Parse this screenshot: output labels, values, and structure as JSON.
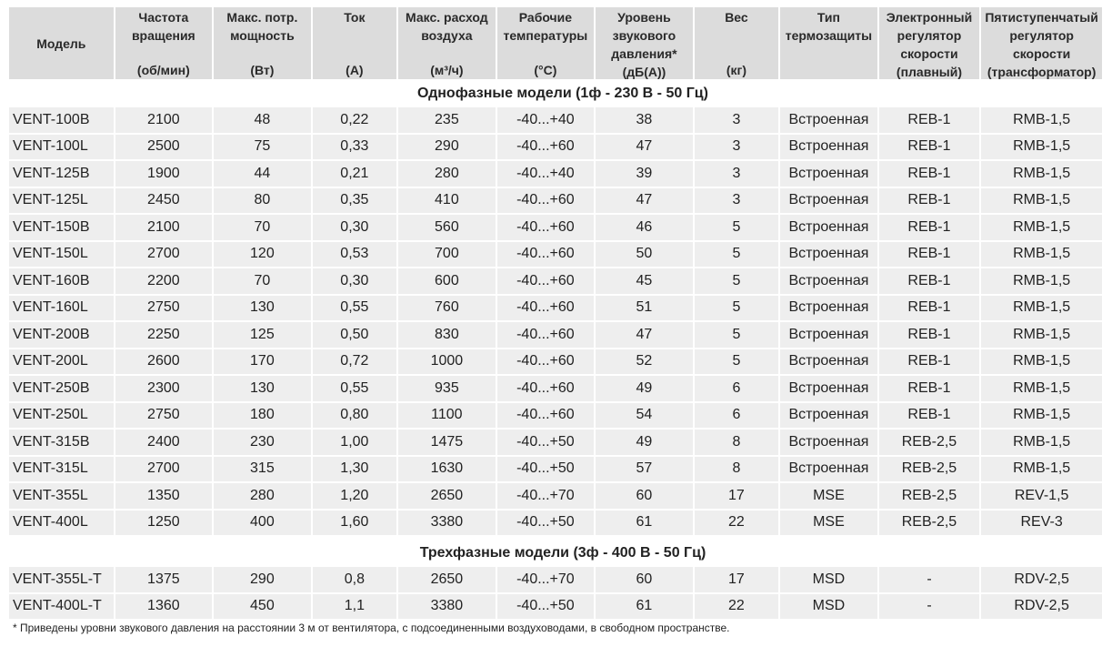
{
  "table": {
    "columns": [
      {
        "key": "model",
        "title": "Модель",
        "unit": ""
      },
      {
        "key": "rpm",
        "title": "Частота\nвращения",
        "unit": "(об/мин)"
      },
      {
        "key": "power",
        "title": "Макс. потр.\nмощность",
        "unit": "(Вт)"
      },
      {
        "key": "current",
        "title": "Ток",
        "unit": "(А)"
      },
      {
        "key": "airflow",
        "title": "Макс. расход\nвоздуха",
        "unit": "(м³/ч)"
      },
      {
        "key": "temp",
        "title": "Рабочие\nтемпературы",
        "unit": "(°С)"
      },
      {
        "key": "noise",
        "title": "Уровень\nзвукового\nдавления*",
        "unit": "(дБ(А))"
      },
      {
        "key": "weight",
        "title": "Вес",
        "unit": "(кг)"
      },
      {
        "key": "protection",
        "title": "Тип\nтермозащиты",
        "unit": ""
      },
      {
        "key": "reb",
        "title": "Электронный\nрегулятор\nскорости\n(плавный)",
        "unit": ""
      },
      {
        "key": "rmb",
        "title": "Пятиступенчатый\nрегулятор\nскорости\n(трансформатор)",
        "unit": ""
      }
    ],
    "groups": [
      {
        "title": "Однофазные модели (1ф - 230 В - 50 Гц)",
        "rows": [
          [
            "VENT-100B",
            "2100",
            "48",
            "0,22",
            "235",
            "-40...+40",
            "38",
            "3",
            "Встроенная",
            "REB-1",
            "RMB-1,5"
          ],
          [
            "VENT-100L",
            "2500",
            "75",
            "0,33",
            "290",
            "-40...+60",
            "47",
            "3",
            "Встроенная",
            "REB-1",
            "RMB-1,5"
          ],
          [
            "VENT-125B",
            "1900",
            "44",
            "0,21",
            "280",
            "-40...+40",
            "39",
            "3",
            "Встроенная",
            "REB-1",
            "RMB-1,5"
          ],
          [
            "VENT-125L",
            "2450",
            "80",
            "0,35",
            "410",
            "-40...+60",
            "47",
            "3",
            "Встроенная",
            "REB-1",
            "RMB-1,5"
          ],
          [
            "VENT-150B",
            "2100",
            "70",
            "0,30",
            "560",
            "-40...+60",
            "46",
            "5",
            "Встроенная",
            "REB-1",
            "RMB-1,5"
          ],
          [
            "VENT-150L",
            "2700",
            "120",
            "0,53",
            "700",
            "-40...+60",
            "50",
            "5",
            "Встроенная",
            "REB-1",
            "RMB-1,5"
          ],
          [
            "VENT-160B",
            "2200",
            "70",
            "0,30",
            "600",
            "-40...+60",
            "45",
            "5",
            "Встроенная",
            "REB-1",
            "RMB-1,5"
          ],
          [
            "VENT-160L",
            "2750",
            "130",
            "0,55",
            "760",
            "-40...+60",
            "51",
            "5",
            "Встроенная",
            "REB-1",
            "RMB-1,5"
          ],
          [
            "VENT-200B",
            "2250",
            "125",
            "0,50",
            "830",
            "-40...+60",
            "47",
            "5",
            "Встроенная",
            "REB-1",
            "RMB-1,5"
          ],
          [
            "VENT-200L",
            "2600",
            "170",
            "0,72",
            "1000",
            "-40...+60",
            "52",
            "5",
            "Встроенная",
            "REB-1",
            "RMB-1,5"
          ],
          [
            "VENT-250B",
            "2300",
            "130",
            "0,55",
            "935",
            "-40...+60",
            "49",
            "6",
            "Встроенная",
            "REB-1",
            "RMB-1,5"
          ],
          [
            "VENT-250L",
            "2750",
            "180",
            "0,80",
            "1100",
            "-40...+60",
            "54",
            "6",
            "Встроенная",
            "REB-1",
            "RMB-1,5"
          ],
          [
            "VENT-315B",
            "2400",
            "230",
            "1,00",
            "1475",
            "-40...+50",
            "49",
            "8",
            "Встроенная",
            "REB-2,5",
            "RMB-1,5"
          ],
          [
            "VENT-315L",
            "2700",
            "315",
            "1,30",
            "1630",
            "-40...+50",
            "57",
            "8",
            "Встроенная",
            "REB-2,5",
            "RMB-1,5"
          ],
          [
            "VENT-355L",
            "1350",
            "280",
            "1,20",
            "2650",
            "-40...+70",
            "60",
            "17",
            "MSE",
            "REB-2,5",
            "REV-1,5"
          ],
          [
            "VENT-400L",
            "1250",
            "400",
            "1,60",
            "3380",
            "-40...+50",
            "61",
            "22",
            "MSE",
            "REB-2,5",
            "REV-3"
          ]
        ]
      },
      {
        "title": "Трехфазные модели (3ф - 400 В - 50 Гц)",
        "rows": [
          [
            "VENT-355L-T",
            "1375",
            "290",
            "0,8",
            "2650",
            "-40...+70",
            "60",
            "17",
            "MSD",
            "-",
            "RDV-2,5"
          ],
          [
            "VENT-400L-T",
            "1360",
            "450",
            "1,1",
            "3380",
            "-40...+50",
            "61",
            "22",
            "MSD",
            "-",
            "RDV-2,5"
          ]
        ]
      }
    ]
  },
  "footnote": "* Приведены уровни звукового давления на расстоянии 3 м от вентилятора, с подсоединенными воздуховодами, в свободном пространстве."
}
